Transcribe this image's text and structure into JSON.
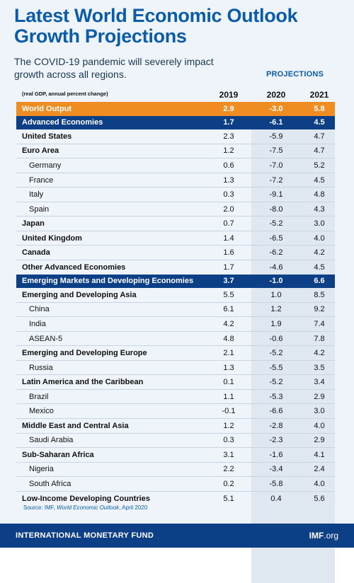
{
  "title_line1": "Latest World Economic Outlook",
  "title_line2": "Growth Projections",
  "subtitle": "The COVID-19 pandemic will severely impact growth across all regions.",
  "projections_label": "PROJECTIONS",
  "units_note": "(real GDP, annual percent change)",
  "years": [
    "2019",
    "2020",
    "2021"
  ],
  "source_prefix": "Source: IMF, ",
  "source_title": "World Economic Outlook",
  "source_suffix": ", April 2020",
  "footer_name": "INTERNATIONAL MONETARY FUND",
  "footer_site_main": "IMF",
  "footer_site_tld": ".org",
  "colors": {
    "title": "#0b5ca8",
    "world_row": "#ef8c22",
    "group_row": "#0d3f86",
    "projection_shade": "#dfe7f0",
    "background": "#eef4fa"
  },
  "chart_data": {
    "type": "table",
    "columns": [
      "2019",
      "2020",
      "2021"
    ],
    "rows": [
      {
        "label": "World Output",
        "values": [
          "2.9",
          "-3.0",
          "5.8"
        ],
        "style": "world"
      },
      {
        "label": "Advanced Economies",
        "values": [
          "1.7",
          "-6.1",
          "4.5"
        ],
        "style": "group"
      },
      {
        "label": "United States",
        "values": [
          "2.3",
          "-5.9",
          "4.7"
        ],
        "style": "bold"
      },
      {
        "label": "Euro Area",
        "values": [
          "1.2",
          "-7.5",
          "4.7"
        ],
        "style": "bold"
      },
      {
        "label": "Germany",
        "values": [
          "0.6",
          "-7.0",
          "5.2"
        ],
        "style": "indent"
      },
      {
        "label": "France",
        "values": [
          "1.3",
          "-7.2",
          "4.5"
        ],
        "style": "indent"
      },
      {
        "label": "Italy",
        "values": [
          "0.3",
          "-9.1",
          "4.8"
        ],
        "style": "indent"
      },
      {
        "label": "Spain",
        "values": [
          "2.0",
          "-8.0",
          "4.3"
        ],
        "style": "indent"
      },
      {
        "label": "Japan",
        "values": [
          "0.7",
          "-5.2",
          "3.0"
        ],
        "style": "bold"
      },
      {
        "label": "United Kingdom",
        "values": [
          "1.4",
          "-6.5",
          "4.0"
        ],
        "style": "bold"
      },
      {
        "label": "Canada",
        "values": [
          "1.6",
          "-6.2",
          "4.2"
        ],
        "style": "bold"
      },
      {
        "label": "Other Advanced Economies",
        "values": [
          "1.7",
          "-4.6",
          "4.5"
        ],
        "style": "bold"
      },
      {
        "label": "Emerging Markets and Developing Economies",
        "values": [
          "3.7",
          "-1.0",
          "6.6"
        ],
        "style": "group"
      },
      {
        "label": "Emerging and Developing Asia",
        "values": [
          "5.5",
          "1.0",
          "8.5"
        ],
        "style": "bold"
      },
      {
        "label": "China",
        "values": [
          "6.1",
          "1.2",
          "9.2"
        ],
        "style": "indent"
      },
      {
        "label": "India",
        "values": [
          "4.2",
          "1.9",
          "7.4"
        ],
        "style": "indent"
      },
      {
        "label": "ASEAN-5",
        "values": [
          "4.8",
          "-0.6",
          "7.8"
        ],
        "style": "indent"
      },
      {
        "label": "Emerging and Developing Europe",
        "values": [
          "2.1",
          "-5.2",
          "4.2"
        ],
        "style": "bold"
      },
      {
        "label": "Russia",
        "values": [
          "1.3",
          "-5.5",
          "3.5"
        ],
        "style": "indent"
      },
      {
        "label": "Latin America and the Caribbean",
        "values": [
          "0.1",
          "-5.2",
          "3.4"
        ],
        "style": "bold"
      },
      {
        "label": "Brazil",
        "values": [
          "1.1",
          "-5.3",
          "2.9"
        ],
        "style": "indent"
      },
      {
        "label": "Mexico",
        "values": [
          "-0.1",
          "-6.6",
          "3.0"
        ],
        "style": "indent"
      },
      {
        "label": "Middle East and Central Asia",
        "values": [
          "1.2",
          "-2.8",
          "4.0"
        ],
        "style": "bold"
      },
      {
        "label": "Saudi Arabia",
        "values": [
          "0.3",
          "-2.3",
          "2.9"
        ],
        "style": "indent"
      },
      {
        "label": "Sub-Saharan Africa",
        "values": [
          "3.1",
          "-1.6",
          "4.1"
        ],
        "style": "bold"
      },
      {
        "label": "Nigeria",
        "values": [
          "2.2",
          "-3.4",
          "2.4"
        ],
        "style": "indent"
      },
      {
        "label": "South Africa",
        "values": [
          "0.2",
          "-5.8",
          "4.0"
        ],
        "style": "indent"
      },
      {
        "label": "Low-Income Developing Countries",
        "values": [
          "5.1",
          "0.4",
          "5.6"
        ],
        "style": "bold"
      }
    ]
  }
}
